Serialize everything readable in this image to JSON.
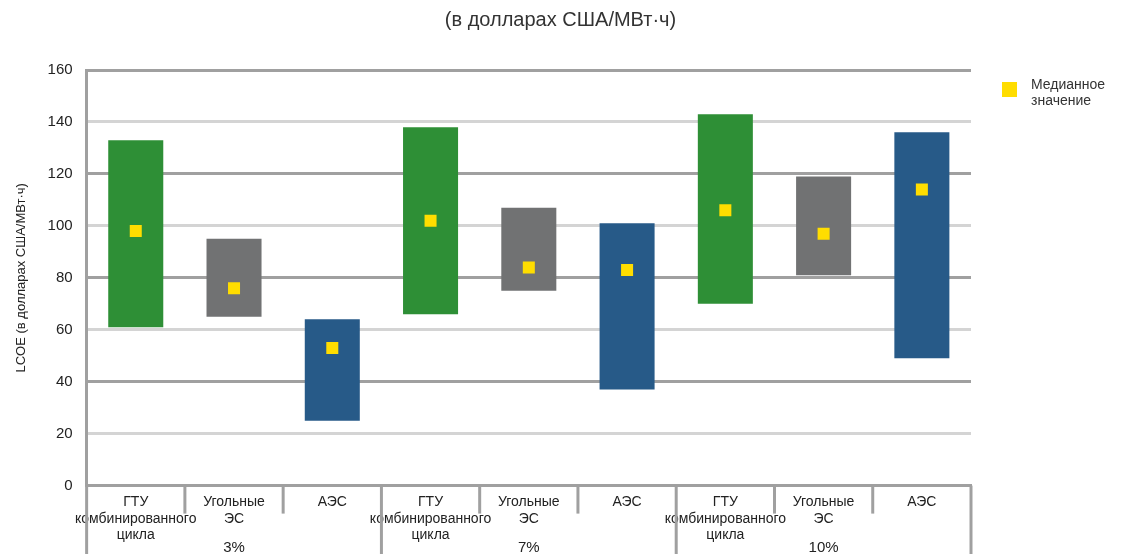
{
  "chart_data": {
    "type": "bar",
    "title": "(в долларах США/МВт·ч)",
    "ylabel": "LCOE (в долларах США/МВт·ч)",
    "categories": [
      "ГТУ комбинированного цикла",
      "Угольные ЭС",
      "АЭС",
      "ГТУ комбинированного цикла",
      "Угольные ЭС",
      "АЭС",
      "ГТУ комбинированного цикла",
      "Угольные ЭС",
      "АЭС"
    ],
    "series": [
      {
        "colors": [
          "#2e8f36",
          "#717273",
          "#275a88",
          "#2e8f36",
          "#717273",
          "#275a88",
          "#2e8f36",
          "#717273",
          "#275a88"
        ],
        "base": [
          61,
          65,
          25,
          66,
          75,
          37,
          70,
          81,
          49
        ],
        "values": [
          72,
          30,
          39,
          72,
          32,
          64,
          73,
          38,
          87
        ]
      },
      {
        "type": "scatter",
        "name": "Медианное значение",
        "color": "#ffdd00",
        "marker": "square",
        "values": [
          98,
          76,
          53,
          102,
          84,
          83,
          106,
          97,
          114
        ]
      }
    ],
    "ylim": [
      0,
      160
    ],
    "yticks": [
      0,
      20,
      40,
      60,
      80,
      100,
      120,
      140,
      160
    ],
    "grid": "y",
    "legend": "top right",
    "annotations": [
      "3%",
      "7%",
      "10%"
    ]
  }
}
